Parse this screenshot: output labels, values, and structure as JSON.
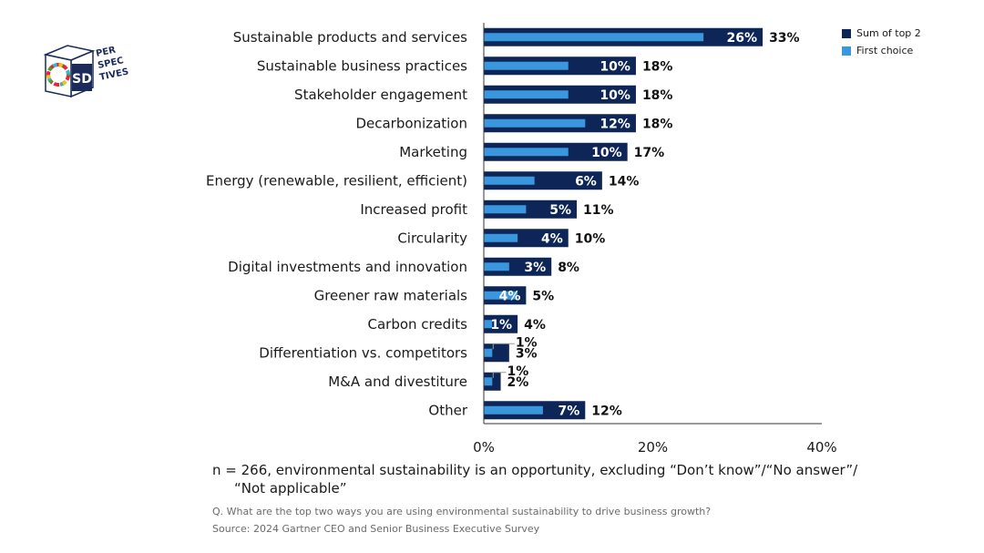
{
  "logo": {
    "letters": "SD",
    "words": [
      "PER",
      "SPEC",
      "TIVES"
    ]
  },
  "legend": [
    {
      "label": "Sum of top 2",
      "color": "#0d2657"
    },
    {
      "label": "First choice",
      "color": "#3a96dd"
    }
  ],
  "chart_data": {
    "type": "bar",
    "orientation": "horizontal",
    "categories": [
      "Sustainable products and services",
      "Sustainable business practices",
      "Stakeholder engagement",
      "Decarbonization",
      "Marketing",
      "Energy (renewable, resilient, efficient)",
      "Increased profit",
      "Circularity",
      "Digital investments and innovation",
      "Greener raw materials",
      "Carbon credits",
      "Differentiation vs. competitors",
      "M&A and divestiture",
      "Other"
    ],
    "series": [
      {
        "name": "Sum of top 2",
        "color": "#0d2657",
        "values": [
          33,
          18,
          18,
          18,
          17,
          14,
          11,
          10,
          8,
          5,
          4,
          3,
          2,
          12
        ]
      },
      {
        "name": "First choice",
        "color": "#3a96dd",
        "values": [
          26,
          10,
          10,
          12,
          10,
          6,
          5,
          4,
          3,
          4,
          1,
          1,
          1,
          7
        ]
      }
    ],
    "value_suffix": "%",
    "xlim": [
      0,
      40
    ],
    "xticks": [
      "0%",
      "20%",
      "40%"
    ],
    "legend_position": "top-right",
    "grid": false
  },
  "footnote": {
    "line1": "n = 266, environmental sustainability is an opportunity, excluding “Don’t know”/“No answer”/",
    "line2": "“Not applicable”"
  },
  "question": "Q. What are the top two ways you are using environmental sustainability to drive business growth?",
  "source": "Source: 2024 Gartner CEO and Senior Business Executive Survey"
}
